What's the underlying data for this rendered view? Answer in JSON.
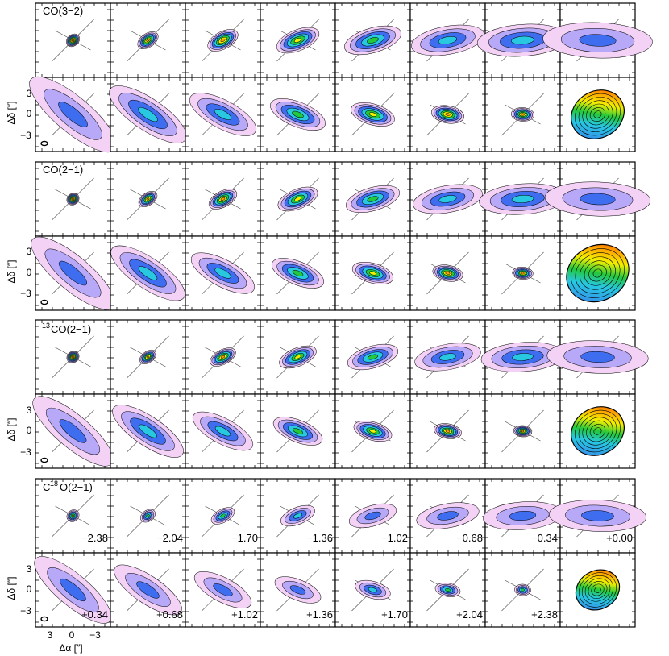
{
  "figure": {
    "lines": [
      {
        "label_main": "CO(3−2)",
        "label_sup": "",
        "label_prefix": ""
      },
      {
        "label_main": "CO(2−1)",
        "label_sup": "",
        "label_prefix": ""
      },
      {
        "label_main": "CO(2−1)",
        "label_sup": "13",
        "label_prefix": ""
      },
      {
        "label_main": "O(2−1)",
        "label_sup": "18",
        "label_prefix": "C"
      }
    ],
    "velocities_row1": [
      "−2.38",
      "−2.04",
      "−1.70",
      "−1.36",
      "−1.02",
      "−0.68",
      "−0.34",
      "+0.00"
    ],
    "velocities_row2": [
      "+0.34",
      "+0.68",
      "+1.02",
      "+1.36",
      "+1.70",
      "+2.04",
      "+2.38",
      ""
    ],
    "y_axis": {
      "label": "Δδ [″]",
      "ticks": [
        "3",
        "0",
        "−3"
      ]
    },
    "x_axis": {
      "label": "Δα [″]",
      "ticks": [
        "3",
        "0",
        "−3"
      ]
    },
    "colors": {
      "red": "#e8150c",
      "orange": "#ffa000",
      "yellow": "#f2f000",
      "green": "#23c83c",
      "cyan": "#27c8e0",
      "blue": "#3f6df0",
      "violet": "#b8a8f8",
      "pink": "#f3d2f6"
    }
  }
}
